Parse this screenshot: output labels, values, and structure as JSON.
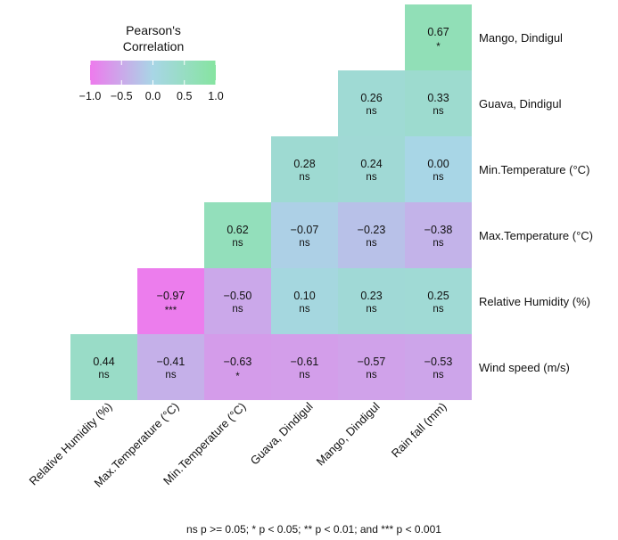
{
  "chart_data": {
    "type": "heatmap",
    "rows": [
      "Mango, Dindigul",
      "Guava, Dindigul",
      "Min.Temperature (°C)",
      "Max.Temperature (°C)",
      "Relative Humidity (%)",
      "Wind speed (m/s)"
    ],
    "columns": [
      "Relative Humidity (%)",
      "Max.Temperature (°C)",
      "Min.Temperature (°C)",
      "Guava, Dindigul",
      "Mango, Dindigul",
      "Rain fall (mm)"
    ],
    "cells": [
      [
        null,
        null,
        null,
        null,
        null,
        {
          "value": 0.67,
          "sig": "*"
        }
      ],
      [
        null,
        null,
        null,
        null,
        {
          "value": 0.26,
          "sig": "ns"
        },
        {
          "value": 0.33,
          "sig": "ns"
        }
      ],
      [
        null,
        null,
        null,
        {
          "value": 0.28,
          "sig": "ns"
        },
        {
          "value": 0.24,
          "sig": "ns"
        },
        {
          "value": 0.0,
          "sig": "ns"
        }
      ],
      [
        null,
        null,
        {
          "value": 0.62,
          "sig": "ns"
        },
        {
          "value": -0.07,
          "sig": "ns"
        },
        {
          "value": -0.23,
          "sig": "ns"
        },
        {
          "value": -0.38,
          "sig": "ns"
        }
      ],
      [
        null,
        {
          "value": -0.97,
          "sig": "***"
        },
        {
          "value": -0.5,
          "sig": "ns"
        },
        {
          "value": 0.1,
          "sig": "ns"
        },
        {
          "value": 0.23,
          "sig": "ns"
        },
        {
          "value": 0.25,
          "sig": "ns"
        }
      ],
      [
        {
          "value": 0.44,
          "sig": "ns"
        },
        {
          "value": -0.41,
          "sig": "ns"
        },
        {
          "value": -0.63,
          "sig": "*"
        },
        {
          "value": -0.61,
          "sig": "ns"
        },
        {
          "value": -0.57,
          "sig": "ns"
        },
        {
          "value": -0.53,
          "sig": "ns"
        }
      ]
    ],
    "legend": {
      "title_line1": "Pearson's",
      "title_line2": "Correlation",
      "ticks": [
        "−1.0",
        "−0.5",
        "0.0",
        "0.5",
        "1.0"
      ],
      "range": [
        -1.0,
        1.0
      ],
      "placement": "top-left"
    },
    "colors": {
      "low": "#ee7aed",
      "mid": "#a8d6e6",
      "high": "#86e4a0"
    },
    "footnote": "ns p >= 0.05; * p < 0.05; ** p < 0.01; and *** p < 0.001"
  }
}
